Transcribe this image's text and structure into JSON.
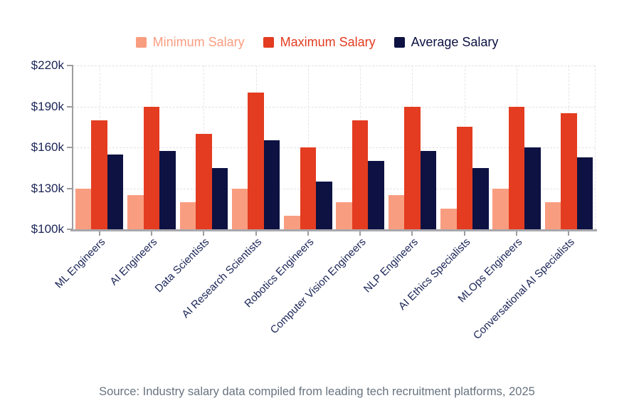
{
  "source_note": "Source: Industry salary data compiled from leading tech recruitment platforms, 2025",
  "chart_data": {
    "type": "bar",
    "title": "",
    "xlabel": "",
    "ylabel": "",
    "value_unit": "USD thousands",
    "legend_position": "top",
    "grid": true,
    "ylim": [
      100,
      220
    ],
    "yticks": [
      {
        "value": 100,
        "label": "$100k"
      },
      {
        "value": 130,
        "label": "$130k"
      },
      {
        "value": 160,
        "label": "$160k"
      },
      {
        "value": 190,
        "label": "$190k"
      },
      {
        "value": 220,
        "label": "$220k"
      }
    ],
    "categories": [
      "ML Engineers",
      "AI Engineers",
      "Data Scientists",
      "AI Research Scientists",
      "Robotics Engineers",
      "Computer Vision Engineers",
      "NLP Engineers",
      "AI Ethics Specialists",
      "MLOps Engineers",
      "Conversational AI Specialists"
    ],
    "series": [
      {
        "name": "Minimum Salary",
        "color": "#f99d80",
        "values": [
          130,
          125,
          120,
          130,
          110,
          120,
          125,
          115,
          130,
          120
        ]
      },
      {
        "name": "Maximum Salary",
        "color": "#e33c20",
        "values": [
          180,
          190,
          170,
          200,
          160,
          180,
          190,
          175,
          190,
          185
        ]
      },
      {
        "name": "Average Salary",
        "color": "#0d1243",
        "values": [
          155,
          157.5,
          145,
          165,
          135,
          150,
          157.5,
          145,
          160,
          152.5
        ]
      }
    ]
  }
}
